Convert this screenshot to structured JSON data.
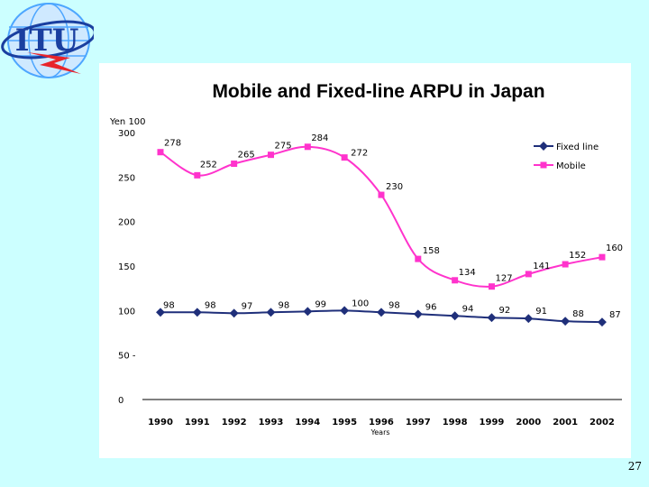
{
  "logo": {
    "text": "ITU",
    "colors": {
      "globe": "#4da6ff",
      "ring": "#1a3fa0",
      "bolt": "#e8242a"
    }
  },
  "page_number": "27",
  "chart_data": {
    "type": "line",
    "title": "Mobile and Fixed-line ARPU in Japan",
    "ylabel": "Yen 100",
    "xlabel": "Years",
    "x": [
      "1990",
      "1991",
      "1992",
      "1993",
      "1994",
      "1995",
      "1996",
      "1997",
      "1998",
      "1999",
      "2000",
      "2001",
      "2002"
    ],
    "ylim": [
      0,
      300
    ],
    "yticks": [
      {
        "value": 0,
        "label": "0"
      },
      {
        "value": 50,
        "label": "50 -"
      },
      {
        "value": 100,
        "label": "100"
      },
      {
        "value": 150,
        "label": "150"
      },
      {
        "value": 200,
        "label": "200"
      },
      {
        "value": 250,
        "label": "250"
      },
      {
        "value": 300,
        "label": "300"
      }
    ],
    "grid": false,
    "legend_position": "top-right",
    "series": [
      {
        "name": "Fixed line",
        "color": "#1f2f7a",
        "marker": "diamond",
        "values": [
          98,
          98,
          97,
          98,
          99,
          100,
          98,
          96,
          94,
          92,
          91,
          88,
          87
        ]
      },
      {
        "name": "Mobile",
        "color": "#ff33cc",
        "marker": "square",
        "values": [
          278,
          252,
          265,
          275,
          284,
          272,
          230,
          158,
          134,
          127,
          141,
          152,
          160
        ]
      }
    ]
  }
}
